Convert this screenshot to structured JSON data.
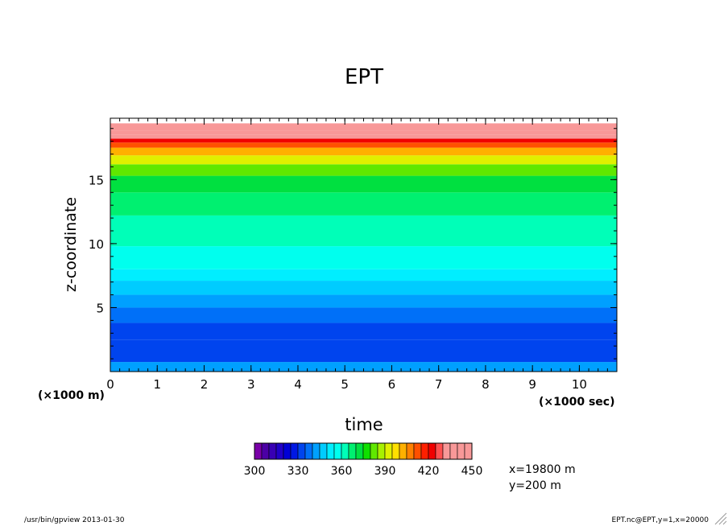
{
  "chart_data": {
    "type": "heatmap",
    "title": "EPT",
    "xlabel": "time",
    "ylabel": "z-coordinate",
    "x_unit": "(×1000 sec)",
    "y_unit": "(×1000 m)",
    "xlim": [
      0,
      10.8
    ],
    "ylim": [
      0,
      19.8
    ],
    "x_ticks": [
      "0",
      "1",
      "2",
      "3",
      "4",
      "5",
      "6",
      "7",
      "8",
      "9",
      "10"
    ],
    "y_ticks": [
      "5",
      "10",
      "15"
    ],
    "colorbar": {
      "min": 300,
      "max": 450,
      "step": 5,
      "tick_labels": [
        "300",
        "330",
        "360",
        "390",
        "420",
        "450"
      ],
      "colors": [
        "#7a00a8",
        "#4b00a5",
        "#3800b4",
        "#2000c8",
        "#0000d6",
        "#0018e4",
        "#0044ee",
        "#0070f8",
        "#00a0ff",
        "#00ccff",
        "#00eeff",
        "#00ffee",
        "#00ffb8",
        "#00f070",
        "#00e040",
        "#10e000",
        "#60e800",
        "#a8f000",
        "#e0f000",
        "#ffe000",
        "#ffb000",
        "#ff8000",
        "#ff5000",
        "#ff2000",
        "#f00000",
        "#ff5050",
        "#f89898"
      ]
    },
    "contour_levels_z": [
      {
        "z": 0.75,
        "value": 340
      },
      {
        "z": 2.5,
        "value": 330
      },
      {
        "z": 3.8,
        "value": 330
      },
      {
        "z": 5.0,
        "value": 335
      },
      {
        "z": 6.0,
        "value": 340
      },
      {
        "z": 7.1,
        "value": 345
      },
      {
        "z": 8.0,
        "value": 350
      },
      {
        "z": 9.8,
        "value": 355
      },
      {
        "z": 12.2,
        "value": 360
      },
      {
        "z": 14.0,
        "value": 365
      },
      {
        "z": 15.3,
        "value": 370
      },
      {
        "z": 16.2,
        "value": 380
      },
      {
        "z": 16.9,
        "value": 390
      },
      {
        "z": 17.5,
        "value": 400
      },
      {
        "z": 17.9,
        "value": 410
      },
      {
        "z": 18.2,
        "value": 420
      },
      {
        "z": 18.5,
        "value": 430
      },
      {
        "z": 18.8,
        "value": 440
      },
      {
        "z": 19.4,
        "value": 450
      }
    ],
    "grid": false
  },
  "annotations": {
    "position_x": "x=19800 m",
    "position_y": "y=200 m",
    "footer_left": "/usr/bin/gpview  2013-01-30",
    "footer_right": "EPT.nc@EPT,y=1,x=20000"
  }
}
